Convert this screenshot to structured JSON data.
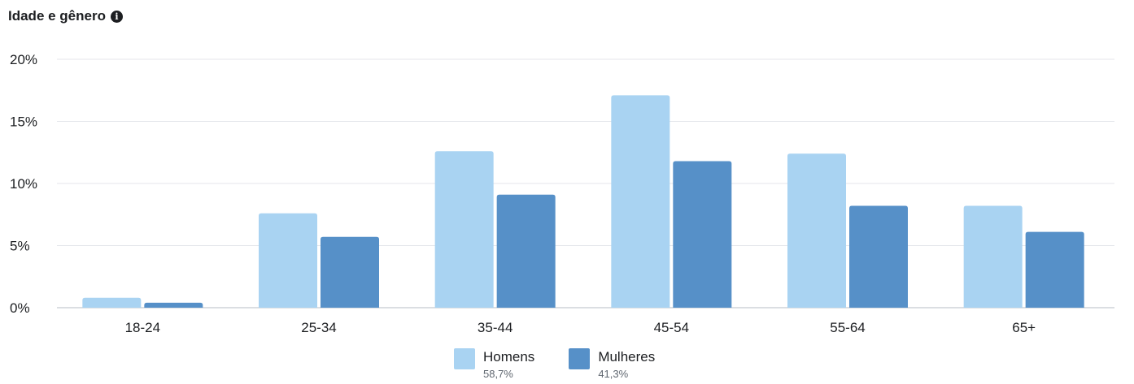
{
  "header": {
    "title": "Idade e gênero",
    "info_icon": "info-icon"
  },
  "legend": [
    {
      "name": "Homens",
      "pct": "58,7%",
      "color": "#a9d3f2"
    },
    {
      "name": "Mulheres",
      "pct": "41,3%",
      "color": "#5690c8"
    }
  ],
  "chart_data": {
    "type": "bar",
    "title": "Idade e gênero",
    "categories": [
      "18-24",
      "25-34",
      "35-44",
      "45-54",
      "55-64",
      "65+"
    ],
    "series": [
      {
        "name": "Homens",
        "values": [
          0.8,
          7.6,
          12.6,
          17.1,
          12.4,
          8.2
        ],
        "color": "#a9d3f2"
      },
      {
        "name": "Mulheres",
        "values": [
          0.4,
          5.7,
          9.1,
          11.8,
          8.2,
          6.1
        ],
        "color": "#5690c8"
      }
    ],
    "yticks": [
      "0%",
      "5%",
      "10%",
      "15%",
      "20%"
    ],
    "ylim": [
      0,
      20
    ],
    "grid": true,
    "legend_position": "bottom"
  }
}
